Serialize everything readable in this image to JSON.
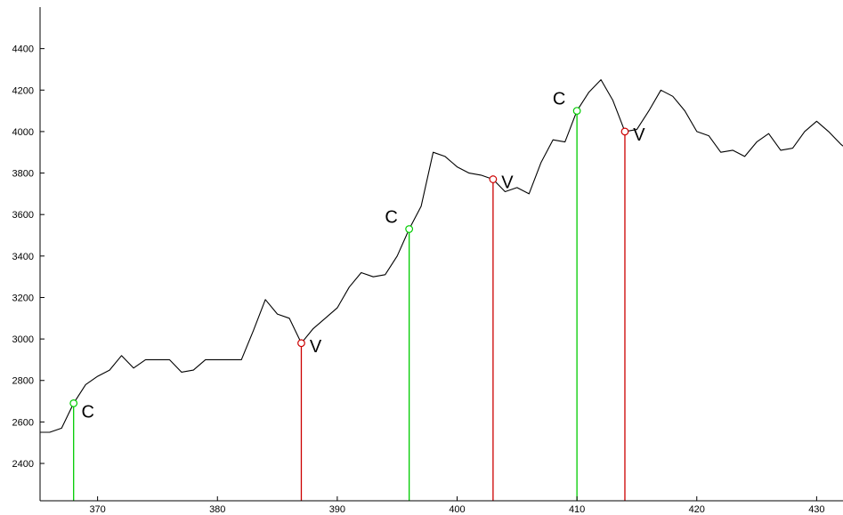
{
  "chart_data": {
    "type": "line",
    "title": "",
    "xlabel": "",
    "ylabel": "",
    "xlim": [
      365.2,
      432.2
    ],
    "ylim": [
      2220,
      4600
    ],
    "grid": false,
    "legend": "none",
    "x_ticks": [
      370,
      380,
      390,
      400,
      410,
      420,
      430
    ],
    "y_ticks": [
      2400,
      2600,
      2800,
      3000,
      3200,
      3400,
      3600,
      3800,
      4000,
      4200,
      4400
    ],
    "series": [
      {
        "values": [
          [
            365.2,
            2550
          ],
          [
            366,
            2550
          ],
          [
            367,
            2570
          ],
          [
            368,
            2690
          ],
          [
            369,
            2780
          ],
          [
            370,
            2820
          ],
          [
            371,
            2850
          ],
          [
            372,
            2920
          ],
          [
            373,
            2860
          ],
          [
            374,
            2900
          ],
          [
            375,
            2900
          ],
          [
            376,
            2900
          ],
          [
            377,
            2840
          ],
          [
            378,
            2850
          ],
          [
            379,
            2900
          ],
          [
            380,
            2900
          ],
          [
            381,
            2900
          ],
          [
            382,
            2900
          ],
          [
            383,
            3040
          ],
          [
            384,
            3190
          ],
          [
            385,
            3120
          ],
          [
            386,
            3100
          ],
          [
            387,
            2980
          ],
          [
            388,
            3050
          ],
          [
            389,
            3100
          ],
          [
            390,
            3150
          ],
          [
            391,
            3250
          ],
          [
            392,
            3320
          ],
          [
            393,
            3300
          ],
          [
            394,
            3310
          ],
          [
            395,
            3400
          ],
          [
            396,
            3530
          ],
          [
            397,
            3640
          ],
          [
            398,
            3900
          ],
          [
            399,
            3880
          ],
          [
            400,
            3830
          ],
          [
            401,
            3800
          ],
          [
            402,
            3790
          ],
          [
            403,
            3770
          ],
          [
            404,
            3710
          ],
          [
            405,
            3730
          ],
          [
            406,
            3700
          ],
          [
            407,
            3850
          ],
          [
            408,
            3960
          ],
          [
            409,
            3950
          ],
          [
            410,
            4100
          ],
          [
            411,
            4190
          ],
          [
            412,
            4250
          ],
          [
            413,
            4150
          ],
          [
            414,
            4000
          ],
          [
            415,
            4010
          ],
          [
            416,
            4100
          ],
          [
            417,
            4200
          ],
          [
            418,
            4170
          ],
          [
            419,
            4100
          ],
          [
            420,
            4000
          ],
          [
            421,
            3980
          ],
          [
            422,
            3900
          ],
          [
            423,
            3910
          ],
          [
            424,
            3880
          ],
          [
            425,
            3950
          ],
          [
            426,
            3990
          ],
          [
            427,
            3910
          ],
          [
            428,
            3920
          ],
          [
            429,
            4000
          ],
          [
            430,
            4050
          ],
          [
            431,
            4000
          ],
          [
            432,
            3940
          ],
          [
            432.2,
            3930
          ]
        ],
        "color": "#000000"
      }
    ],
    "markers": [
      {
        "x": 368,
        "y": 2690,
        "label": "C",
        "color": "#00cc00"
      },
      {
        "x": 387,
        "y": 2980,
        "label": "V",
        "color": "#cc0000"
      },
      {
        "x": 396,
        "y": 3530,
        "label": "C",
        "color": "#00cc00"
      },
      {
        "x": 403,
        "y": 3770,
        "label": "V",
        "color": "#cc0000"
      },
      {
        "x": 410,
        "y": 4100,
        "label": "C",
        "color": "#00cc00"
      },
      {
        "x": 414,
        "y": 4000,
        "label": "V",
        "color": "#cc0000"
      }
    ]
  }
}
